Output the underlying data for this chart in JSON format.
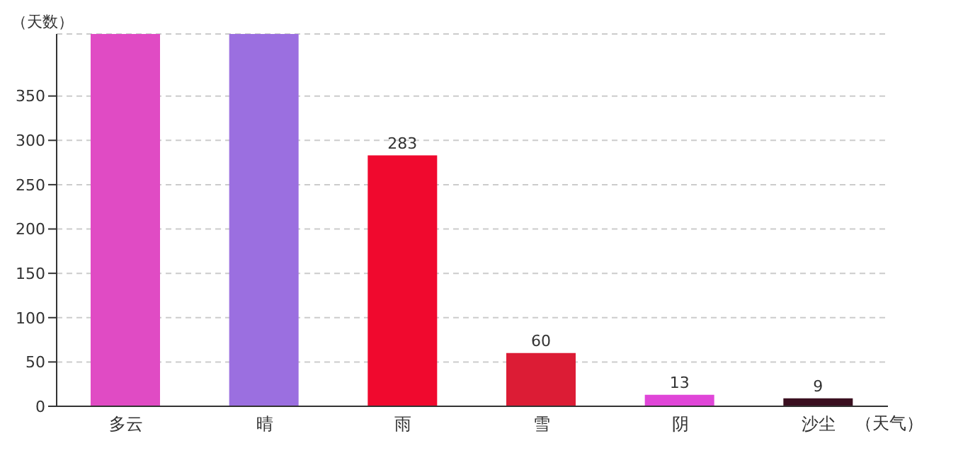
{
  "chart_data": {
    "type": "bar",
    "xlabel": "（天气）",
    "ylabel": "（天数）",
    "categories": [
      "多云",
      "晴",
      "雨",
      "雪",
      "阴",
      "沙尘"
    ],
    "values": [
      420,
      420,
      283,
      60,
      13,
      9
    ],
    "colors": [
      "#e04bc4",
      "#9b6fe0",
      "#f0092e",
      "#dc1c35",
      "#e046d8",
      "#3a0f20"
    ],
    "value_labels": [
      null,
      null,
      "283",
      "60",
      "13",
      "9"
    ],
    "ylim": [
      0,
      420
    ],
    "yticks": [
      0,
      50,
      100,
      150,
      200,
      250,
      300,
      350
    ],
    "grid": "y"
  }
}
